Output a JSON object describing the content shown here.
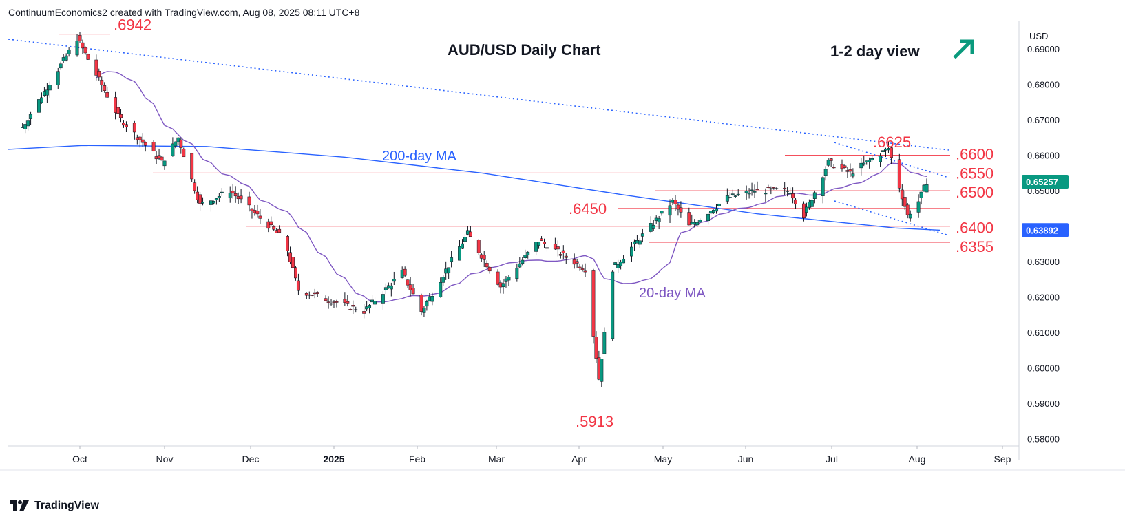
{
  "header": {
    "attribution": "ContinuumEconomics2 created with TradingView.com, Aug 08, 2025 08:11 UTC+8"
  },
  "footer": {
    "brand": "TradingView"
  },
  "chart_data": {
    "type": "candlestick",
    "title": "AUD/USD Daily Chart",
    "view_label": "1-2 day view",
    "view_arrow": "up-right",
    "currency": "USD",
    "ylim": [
      0.578,
      0.698
    ],
    "y_ticks": [
      "0.69000",
      "0.68000",
      "0.67000",
      "0.66000",
      "0.65000",
      "0.64000",
      "0.63000",
      "0.62000",
      "0.61000",
      "0.60000",
      "0.59000",
      "0.58000"
    ],
    "x_ticks": [
      "Oct",
      "Nov",
      "Dec",
      "2025",
      "Feb",
      "Mar",
      "Apr",
      "May",
      "Jun",
      "Jul",
      "Aug",
      "Sep"
    ],
    "last_price": "0.65257",
    "ma200_last": "0.63892",
    "colors": {
      "up": "#089981",
      "down": "#f23645",
      "ma200": "#2962ff",
      "ma20": "#7e57c2",
      "levels": "#f23645",
      "trend": "#2962ff",
      "arrow": "#0a9a7d"
    },
    "levels": [
      {
        "label": ".6942",
        "value": 0.6942
      },
      {
        "label": ".6600",
        "value": 0.66
      },
      {
        "label": ".6550",
        "value": 0.655
      },
      {
        "label": ".6500",
        "value": 0.65
      },
      {
        "label": ".6450",
        "value": 0.645
      },
      {
        "label": ".6400",
        "value": 0.64
      },
      {
        "label": ".6355",
        "value": 0.6355
      }
    ],
    "annotations": [
      {
        "label": ".6625",
        "value": 0.6625
      },
      {
        "label": ".5913",
        "value": 0.5913
      },
      {
        "label": "200-day MA"
      },
      {
        "label": "20-day MA"
      }
    ],
    "ohlc_keypoints": [
      {
        "date": "2024-09-10",
        "close": 0.668
      },
      {
        "date": "2024-09-30",
        "close": 0.693
      },
      {
        "date": "2024-10-15",
        "close": 0.671
      },
      {
        "date": "2024-10-31",
        "close": 0.658
      },
      {
        "date": "2024-11-06",
        "close": 0.665
      },
      {
        "date": "2024-11-14",
        "close": 0.646
      },
      {
        "date": "2024-11-25",
        "close": 0.65
      },
      {
        "date": "2024-12-15",
        "close": 0.636
      },
      {
        "date": "2024-12-20",
        "close": 0.622
      },
      {
        "date": "2025-01-13",
        "close": 0.616
      },
      {
        "date": "2025-01-27",
        "close": 0.627
      },
      {
        "date": "2025-02-03",
        "close": 0.616
      },
      {
        "date": "2025-02-20",
        "close": 0.638
      },
      {
        "date": "2025-03-04",
        "close": 0.623
      },
      {
        "date": "2025-03-18",
        "close": 0.636
      },
      {
        "date": "2025-04-04",
        "close": 0.628
      },
      {
        "date": "2025-04-09",
        "close": 0.597
      },
      {
        "date": "2025-04-14",
        "close": 0.628
      },
      {
        "date": "2025-04-28",
        "close": 0.64
      },
      {
        "date": "2025-05-06",
        "close": 0.647
      },
      {
        "date": "2025-05-12",
        "close": 0.64
      },
      {
        "date": "2025-05-26",
        "close": 0.648
      },
      {
        "date": "2025-06-05",
        "close": 0.65
      },
      {
        "date": "2025-06-18",
        "close": 0.65
      },
      {
        "date": "2025-06-23",
        "close": 0.643
      },
      {
        "date": "2025-07-02",
        "close": 0.658
      },
      {
        "date": "2025-07-10",
        "close": 0.655
      },
      {
        "date": "2025-07-24",
        "close": 0.662
      },
      {
        "date": "2025-07-31",
        "close": 0.643
      },
      {
        "date": "2025-08-04",
        "close": 0.647
      },
      {
        "date": "2025-08-07",
        "close": 0.6526
      }
    ]
  }
}
